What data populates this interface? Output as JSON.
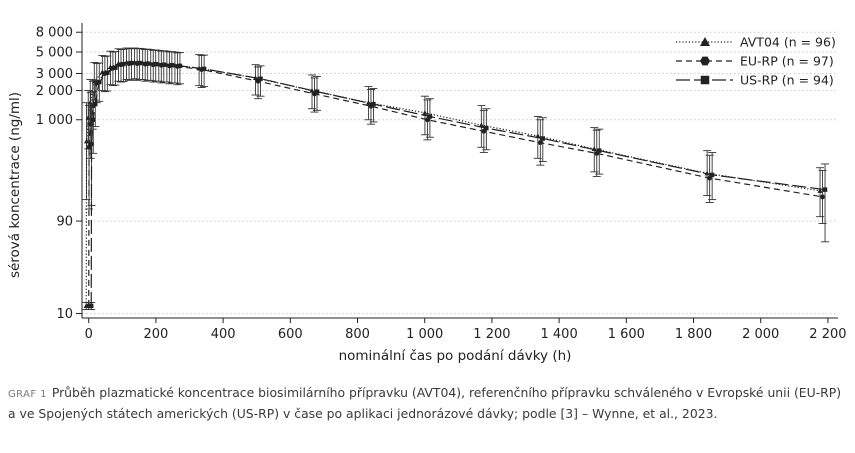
{
  "chart_data": {
    "type": "line",
    "xlabel": "nominální čas po podání dávky (h)",
    "ylabel": "sérová koncentrace (ng/ml)",
    "x_ticks": [
      0,
      200,
      400,
      600,
      800,
      1000,
      1200,
      1400,
      1600,
      1800,
      2000,
      2200
    ],
    "x_tick_labels": [
      "0",
      "200",
      "400",
      "600",
      "800",
      "1 000",
      "1 200",
      "1 400",
      "1 600",
      "1 800",
      "2 000",
      "2 200"
    ],
    "y_scale": "log",
    "y_ticks": [
      10,
      90,
      1000,
      2000,
      3000,
      5000,
      8000
    ],
    "y_tick_labels": [
      "10",
      "90",
      "1 000",
      "2 000",
      "3 000",
      "5 000",
      "8 000"
    ],
    "xlim": [
      -20,
      2230
    ],
    "ylim": [
      9,
      9500
    ],
    "grid": "horizontal dotted",
    "legend_position": "top-right",
    "series": [
      {
        "name": "AVT04 (n = 96)",
        "color": "#222222",
        "line": "dotted",
        "marker": "triangle",
        "x": [
          0,
          1,
          6,
          12,
          24,
          48,
          72,
          96,
          120,
          144,
          168,
          192,
          216,
          240,
          264,
          336,
          504,
          672,
          840,
          1008,
          1176,
          1344,
          1512,
          1848,
          2184
        ],
        "y": [
          12,
          600,
          1050,
          1500,
          2500,
          3100,
          3500,
          3800,
          3900,
          3900,
          3850,
          3800,
          3750,
          3700,
          3650,
          3400,
          2700,
          2000,
          1500,
          1180,
          880,
          680,
          500,
          280,
          185
        ],
        "err_low": [
          11,
          150,
          500,
          900,
          1600,
          2000,
          2300,
          2500,
          2600,
          2650,
          2600,
          2550,
          2500,
          2450,
          2400,
          2250,
          1800,
          1300,
          1000,
          700,
          520,
          400,
          290,
          165,
          100
        ],
        "err_high": [
          13,
          1500,
          2000,
          2600,
          3900,
          4600,
          5100,
          5400,
          5500,
          5500,
          5400,
          5300,
          5200,
          5100,
          5000,
          4700,
          3700,
          2900,
          2200,
          1750,
          1400,
          1080,
          830,
          480,
          320
        ]
      },
      {
        "name": "EU-RP (n = 97)",
        "color": "#222222",
        "line": "dashed",
        "marker": "hexagon",
        "x": [
          0,
          1,
          6,
          12,
          24,
          48,
          72,
          96,
          120,
          144,
          168,
          192,
          216,
          240,
          264,
          336,
          504,
          672,
          840,
          1008,
          1176,
          1344,
          1512,
          1848,
          2184
        ],
        "y": [
          12,
          520,
          900,
          1400,
          2400,
          3000,
          3400,
          3700,
          3800,
          3800,
          3750,
          3700,
          3650,
          3600,
          3550,
          3300,
          2500,
          1850,
          1380,
          1000,
          760,
          580,
          450,
          250,
          160
        ],
        "err_low": [
          11,
          120,
          400,
          800,
          1500,
          1950,
          2250,
          2450,
          2550,
          2550,
          2500,
          2450,
          2400,
          2350,
          2300,
          2150,
          1650,
          1200,
          900,
          620,
          460,
          340,
          260,
          140,
          85
        ],
        "err_high": [
          13,
          1400,
          1900,
          2500,
          3800,
          4500,
          5000,
          5300,
          5400,
          5400,
          5300,
          5200,
          5100,
          5000,
          4900,
          4600,
          3500,
          2700,
          2050,
          1600,
          1250,
          1000,
          780,
          430,
          300
        ]
      },
      {
        "name": "US-RP (n = 94)",
        "color": "#222222",
        "line": "long-dash",
        "marker": "square",
        "x": [
          0,
          1,
          6,
          12,
          24,
          48,
          72,
          96,
          120,
          144,
          168,
          192,
          216,
          240,
          264,
          336,
          504,
          672,
          840,
          1008,
          1176,
          1344,
          1512,
          1848,
          2184
        ],
        "y": [
          12,
          560,
          1000,
          1450,
          2450,
          3050,
          3450,
          3750,
          3850,
          3850,
          3800,
          3750,
          3700,
          3650,
          3600,
          3350,
          2650,
          1950,
          1450,
          1080,
          820,
          640,
          480,
          270,
          190
        ],
        "err_low": [
          11,
          130,
          450,
          850,
          1550,
          1980,
          2280,
          2480,
          2580,
          2600,
          2550,
          2500,
          2450,
          2400,
          2350,
          2200,
          1750,
          1250,
          950,
          660,
          490,
          370,
          275,
          150,
          55
        ],
        "err_high": [
          13,
          1450,
          1950,
          2550,
          3850,
          4550,
          5050,
          5350,
          5450,
          5450,
          5350,
          5250,
          5150,
          5050,
          4950,
          4650,
          3600,
          2800,
          2100,
          1650,
          1300,
          1050,
          800,
          460,
          350
        ]
      }
    ]
  },
  "caption": {
    "tag": "GRAF 1",
    "text": "Průběh plazmatické koncentrace biosimilárního přípravku (AVT04), referenčního přípravku schváleného v Evropské unii (EU-RP) a ve Spojených státech amerických (US-RP) v čase po aplikaci jednorázové dávky; podle [3] – Wynne, et al., 2023."
  }
}
